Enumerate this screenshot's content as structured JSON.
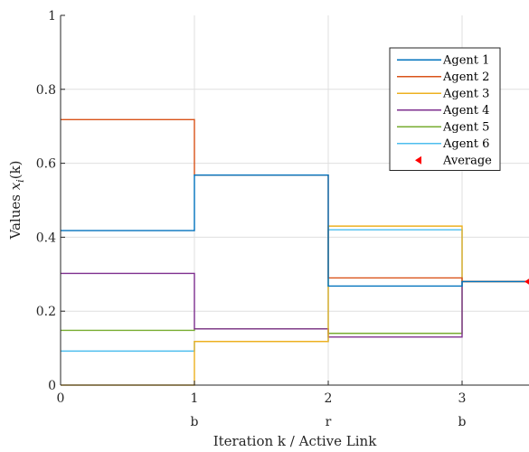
{
  "chart_data": {
    "type": "line",
    "step": true,
    "xlabel": "Iteration k / Active Link",
    "ylabel": "Values x_i(k)",
    "ylabel_parts": {
      "main": "Values ",
      "var": "x",
      "sub": "i",
      "arg": "(k)"
    },
    "xlim": [
      0,
      3.5
    ],
    "ylim": [
      0,
      1
    ],
    "x_ticks": [
      0,
      1,
      2,
      3
    ],
    "y_ticks": [
      0,
      0.2,
      0.4,
      0.6,
      0.8,
      1
    ],
    "x_tick_labels": [
      "0",
      "1",
      "2",
      "3"
    ],
    "y_tick_labels": [
      "0",
      "0.2",
      "0.4",
      "0.6",
      "0.8",
      "1"
    ],
    "active_links": [
      {
        "x": 1,
        "label": "b"
      },
      {
        "x": 2,
        "label": "r"
      },
      {
        "x": 3,
        "label": "b"
      }
    ],
    "grid": true,
    "legend_position": "top-right",
    "series": [
      {
        "name": "Agent 1",
        "color": "#0072BD",
        "x": [
          0,
          1,
          2,
          3,
          3.5
        ],
        "y": [
          0.418,
          0.568,
          0.268,
          0.28,
          0.28
        ]
      },
      {
        "name": "Agent 2",
        "color": "#D95319",
        "x": [
          0,
          1,
          2,
          3,
          3.5
        ],
        "y": [
          0.718,
          0.568,
          0.29,
          0.28,
          0.28
        ]
      },
      {
        "name": "Agent 3",
        "color": "#EDB120",
        "x": [
          0,
          1,
          2,
          3,
          3.5
        ],
        "y": [
          0.0,
          0.118,
          0.43,
          0.28,
          0.28
        ]
      },
      {
        "name": "Agent 4",
        "color": "#7E2F8E",
        "x": [
          0,
          1,
          2,
          3,
          3.5
        ],
        "y": [
          0.302,
          0.152,
          0.13,
          0.28,
          0.28
        ]
      },
      {
        "name": "Agent 5",
        "color": "#77AC30",
        "x": [
          0,
          1,
          2,
          3,
          3.5
        ],
        "y": [
          0.148,
          0.152,
          0.14,
          0.28,
          0.28
        ]
      },
      {
        "name": "Agent 6",
        "color": "#4DBEEE",
        "x": [
          0,
          1,
          2,
          3,
          3.5
        ],
        "y": [
          0.092,
          0.118,
          0.42,
          0.28,
          0.28
        ]
      }
    ],
    "average": {
      "name": "Average",
      "color": "#FF0000",
      "x": 3.5,
      "y": 0.28
    }
  }
}
